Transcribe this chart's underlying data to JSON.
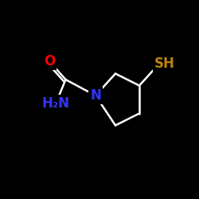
{
  "bg_color": "#000000",
  "bond_color": "#ffffff",
  "N_color": "#3333ff",
  "O_color": "#ff0000",
  "S_color": "#b8860b",
  "label_N": "N",
  "label_O": "O",
  "label_SH": "SH",
  "label_H2N": "H₂N",
  "figsize": [
    2.5,
    2.5
  ],
  "dpi": 100
}
